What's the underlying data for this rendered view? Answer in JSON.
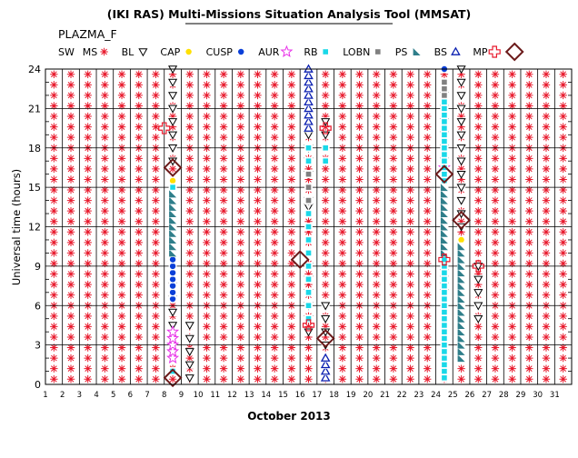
{
  "title": "(IKI RAS) Multi-Missions Situation Analysis Tool (MMSAT)",
  "subtitle": "PLAZMA_F",
  "legend": [
    {
      "label": "SW",
      "symbol": "none",
      "color": "#000000"
    },
    {
      "label": "MS",
      "symbol": "asterisk",
      "color": "#e8192c"
    },
    {
      "label": "BL",
      "symbol": "triangle-down",
      "color": "#000000"
    },
    {
      "label": "CAP",
      "symbol": "dot",
      "color": "#ffe000"
    },
    {
      "label": "CUSP",
      "symbol": "dot",
      "color": "#0a3fd8"
    },
    {
      "label": "AUR",
      "symbol": "star",
      "color": "#e830e8"
    },
    {
      "label": "RB",
      "symbol": "square",
      "color": "#19d8e8"
    },
    {
      "label": "LOBN",
      "symbol": "square",
      "color": "#808080"
    },
    {
      "label": "PS",
      "symbol": "wedge",
      "color": "#2f7e8a"
    },
    {
      "label": "BS",
      "symbol": "triangle-up",
      "color": "#0a1fb0"
    },
    {
      "label": "MP",
      "symbol": "cross",
      "color": "#e8192c"
    },
    {
      "label": "",
      "symbol": "diamond",
      "color": "#6b1a1a"
    }
  ],
  "chart_data": {
    "type": "scatter",
    "xlabel": "October 2013",
    "ylabel": "Universal time (hours)",
    "xlim": [
      1,
      32
    ],
    "ylim": [
      0,
      24
    ],
    "x_ticks": [
      "1",
      "2",
      "3",
      "4",
      "5",
      "6",
      "7",
      "8",
      "9",
      "10",
      "11",
      "12",
      "13",
      "14",
      "15",
      "16",
      "17",
      "18",
      "19",
      "20",
      "21",
      "22",
      "23",
      "24",
      "25",
      "26",
      "27",
      "28",
      "29",
      "30",
      "31"
    ],
    "y_ticks": [
      "0",
      "3",
      "6",
      "9",
      "12",
      "15",
      "18",
      "21",
      "24"
    ],
    "grid": true,
    "background_region": {
      "name": "MS",
      "y_step_hours": 0.8
    },
    "series": [
      {
        "name": "BL",
        "day": 8.5,
        "hours": [
          4.5,
          5.5,
          6.5,
          7.5,
          17,
          18,
          19,
          20,
          21,
          22,
          23,
          24
        ]
      },
      {
        "name": "BL",
        "day": 9.5,
        "hours": [
          0.5,
          1.5,
          2.5,
          3.5,
          4.5
        ]
      },
      {
        "name": "BL",
        "day": 16.5,
        "hours": [
          4,
          5,
          6,
          7,
          8,
          9,
          13.5,
          14,
          16,
          17,
          18,
          19
        ]
      },
      {
        "name": "BL",
        "day": 17.5,
        "hours": [
          3,
          4,
          5,
          6,
          19,
          20
        ]
      },
      {
        "name": "BL",
        "day": 24.5,
        "hours": [
          7,
          7.5,
          8,
          8.5,
          17,
          18,
          19,
          20,
          21,
          22
        ]
      },
      {
        "name": "BL",
        "day": 25.5,
        "hours": [
          12,
          13,
          14,
          15,
          16,
          17,
          18,
          19,
          20,
          21,
          22,
          23,
          24
        ]
      },
      {
        "name": "BL",
        "day": 26.5,
        "hours": [
          5,
          6,
          7,
          8,
          9
        ]
      },
      {
        "name": "CAP",
        "day": 8.5,
        "hours": [
          15.5
        ]
      },
      {
        "name": "CAP",
        "day": 25.5,
        "hours": [
          11
        ]
      },
      {
        "name": "CUSP",
        "day": 8.5,
        "hours": [
          6.5,
          7,
          7.5,
          8,
          8.5,
          9,
          9.5
        ]
      },
      {
        "name": "CUSP",
        "day": 24.5,
        "hours": [
          23,
          24
        ]
      },
      {
        "name": "AUR",
        "day": 8.5,
        "hours": [
          2,
          2.5,
          3,
          3.5,
          4
        ]
      },
      {
        "name": "AUR",
        "day": 24.5,
        "hours": [
          16.5
        ]
      },
      {
        "name": "RB",
        "day": 8.5,
        "hours": [
          1,
          10,
          15
        ]
      },
      {
        "name": "RB",
        "day": 16.5,
        "hours": [
          5,
          6,
          7,
          8,
          9,
          10,
          11,
          12,
          13,
          17,
          18
        ]
      },
      {
        "name": "RB",
        "day": 17.5,
        "hours": [
          17,
          18
        ]
      },
      {
        "name": "RB",
        "day": 24.5,
        "hours": [
          0.5,
          1,
          1.5,
          2,
          2.5,
          3,
          3.5,
          4,
          4.5,
          5,
          5.5,
          6,
          6.5,
          7,
          7.5,
          8,
          8.5,
          9,
          9.5,
          10,
          10.5,
          11,
          11.5,
          12,
          12.5,
          13,
          13.5,
          14,
          14.5,
          15,
          15.5,
          16,
          16.5,
          17,
          17.5,
          18,
          18.5,
          19,
          19.5,
          20,
          20.5,
          21,
          21.5,
          22
        ]
      },
      {
        "name": "LOBN",
        "day": 16.5,
        "hours": [
          14,
          15,
          16
        ]
      },
      {
        "name": "LOBN",
        "day": 24.5,
        "hours": [
          22,
          22.5,
          23
        ]
      },
      {
        "name": "PS",
        "day": 8.5,
        "hours": [
          10,
          10.5,
          11,
          11.5,
          12,
          12.5,
          13,
          13.5,
          14,
          14.5
        ]
      },
      {
        "name": "PS",
        "day": 24.5,
        "hours": [
          10,
          10.5,
          11,
          11.5,
          12,
          12.5,
          13,
          13.5,
          14,
          14.5,
          15
        ]
      },
      {
        "name": "PS",
        "day": 25.5,
        "hours": [
          2,
          2.5,
          3,
          3.5,
          4,
          4.5,
          5,
          5.5,
          6,
          6.5,
          7,
          7.5,
          8,
          8.5,
          9,
          9.5,
          10,
          10.5
        ]
      },
      {
        "name": "BS",
        "day": 16.5,
        "hours": [
          19.5,
          20,
          20.5,
          21,
          21.5,
          22,
          22.5,
          23,
          23.5,
          24
        ]
      },
      {
        "name": "BS",
        "day": 17.5,
        "hours": [
          0.5,
          1,
          1.5,
          2
        ]
      },
      {
        "name": "MP",
        "day": 8,
        "hours": [
          19.5
        ]
      },
      {
        "name": "MP",
        "day": 16.5,
        "hours": [
          4.5
        ]
      },
      {
        "name": "MP",
        "day": 17.5,
        "hours": [
          19.5
        ]
      },
      {
        "name": "MP",
        "day": 24.5,
        "hours": [
          9.5
        ]
      },
      {
        "name": "MP",
        "day": 26.5,
        "hours": [
          9
        ]
      },
      {
        "name": "",
        "day": 8.5,
        "hours": [
          0.5,
          16.5
        ]
      },
      {
        "name": "",
        "day": 16,
        "hours": [
          9.5
        ]
      },
      {
        "name": "",
        "day": 17.5,
        "hours": [
          3.5
        ]
      },
      {
        "name": "",
        "day": 24.5,
        "hours": [
          16
        ]
      },
      {
        "name": "",
        "day": 25.5,
        "hours": [
          12.5
        ]
      }
    ]
  }
}
